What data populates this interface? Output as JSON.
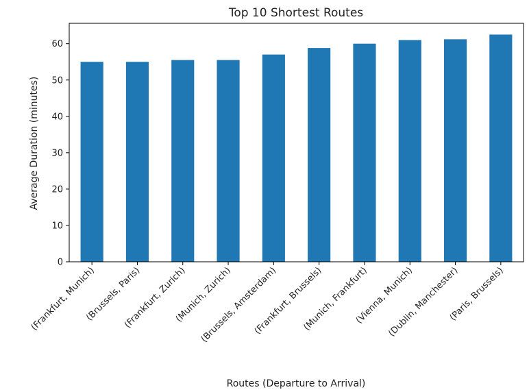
{
  "chart_data": {
    "type": "bar",
    "title": "Top 10 Shortest Routes",
    "xlabel": "Routes (Departure to Arrival)",
    "ylabel": "Average Duration (minutes)",
    "categories": [
      "(Frankfurt, Munich)",
      "(Brussels, Paris)",
      "(Frankfurt, Zurich)",
      "(Munich, Zurich)",
      "(Brussels, Amsterdam)",
      "(Frankfurt, Brussels)",
      "(Munich, Frankfurt)",
      "(Vienna, Munich)",
      "(Dublin, Manchester)",
      "(Paris, Brussels)"
    ],
    "values": [
      55.0,
      55.0,
      55.5,
      55.5,
      57.0,
      58.8,
      60.0,
      61.0,
      61.2,
      62.5
    ],
    "ylim": [
      0,
      65.6
    ],
    "yticks": [
      0,
      10,
      20,
      30,
      40,
      50,
      60
    ],
    "grid": false,
    "legend": "none",
    "bar_color": "#1f77b4"
  }
}
